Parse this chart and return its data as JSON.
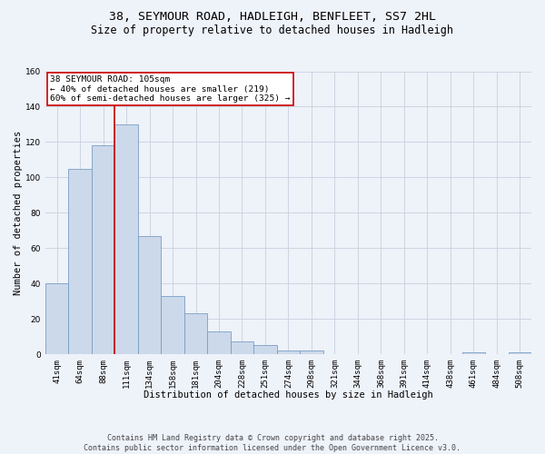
{
  "title": "38, SEYMOUR ROAD, HADLEIGH, BENFLEET, SS7 2HL",
  "subtitle": "Size of property relative to detached houses in Hadleigh",
  "xlabel": "Distribution of detached houses by size in Hadleigh",
  "ylabel": "Number of detached properties",
  "bar_color": "#ccd9ea",
  "bar_edge_color": "#7a9ec5",
  "background_color": "#eef2f9",
  "categories": [
    "41sqm",
    "64sqm",
    "88sqm",
    "111sqm",
    "134sqm",
    "158sqm",
    "181sqm",
    "204sqm",
    "228sqm",
    "251sqm",
    "274sqm",
    "298sqm",
    "321sqm",
    "344sqm",
    "368sqm",
    "391sqm",
    "414sqm",
    "438sqm",
    "461sqm",
    "484sqm",
    "508sqm"
  ],
  "values": [
    40,
    105,
    118,
    130,
    67,
    33,
    23,
    13,
    7,
    5,
    2,
    2,
    0,
    0,
    0,
    0,
    0,
    0,
    1,
    0,
    1
  ],
  "ylim": [
    0,
    160
  ],
  "yticks": [
    0,
    20,
    40,
    60,
    80,
    100,
    120,
    140,
    160
  ],
  "property_label": "38 SEYMOUR ROAD: 105sqm",
  "annotation_line1": "← 40% of detached houses are smaller (219)",
  "annotation_line2": "60% of semi-detached houses are larger (325) →",
  "vline_position": 2.5,
  "annotation_box_color": "#ffffff",
  "annotation_box_edge": "#cc0000",
  "vline_color": "#cc0000",
  "footer_line1": "Contains HM Land Registry data © Crown copyright and database right 2025.",
  "footer_line2": "Contains public sector information licensed under the Open Government Licence v3.0.",
  "grid_color": "#c8d0de",
  "title_fontsize": 9.5,
  "subtitle_fontsize": 8.5,
  "xlabel_fontsize": 7.5,
  "ylabel_fontsize": 7.5,
  "tick_fontsize": 6.5,
  "annotation_fontsize": 6.8,
  "footer_fontsize": 6.0
}
